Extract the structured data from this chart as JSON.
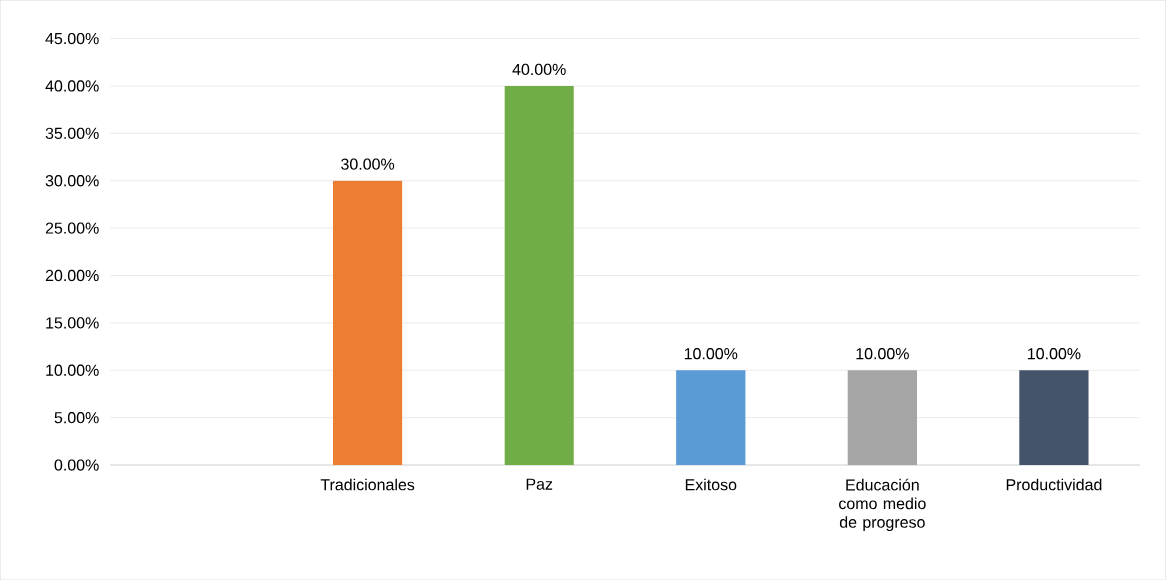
{
  "chart_data": {
    "type": "bar",
    "categories": [
      null,
      "Tradicionales",
      "Paz",
      "Exitoso",
      "Educación como medio de progreso",
      "Productividad"
    ],
    "values": [
      null,
      30,
      40,
      10,
      10,
      10
    ],
    "colors": [
      "#ed7d31",
      "#ed7d31",
      "#70ad47",
      "#5b9bd5",
      "#a5a5a5",
      "#44546a"
    ],
    "value_labels": [
      null,
      "30.00%",
      "40.00%",
      "10.00%",
      "10.00%",
      "10.00%"
    ],
    "ylim": [
      0,
      45
    ],
    "yticks": [
      {
        "value": 0,
        "label": "0.00%"
      },
      {
        "value": 5,
        "label": "5.00%"
      },
      {
        "value": 10,
        "label": "10.00%"
      },
      {
        "value": 15,
        "label": "15.00%"
      },
      {
        "value": 20,
        "label": "20.00%"
      },
      {
        "value": 25,
        "label": "25.00%"
      },
      {
        "value": 30,
        "label": "30.00%"
      },
      {
        "value": 35,
        "label": "35.00%"
      },
      {
        "value": 40,
        "label": "40.00%"
      },
      {
        "value": 45,
        "label": "45.00%"
      }
    ],
    "grid": "y"
  }
}
